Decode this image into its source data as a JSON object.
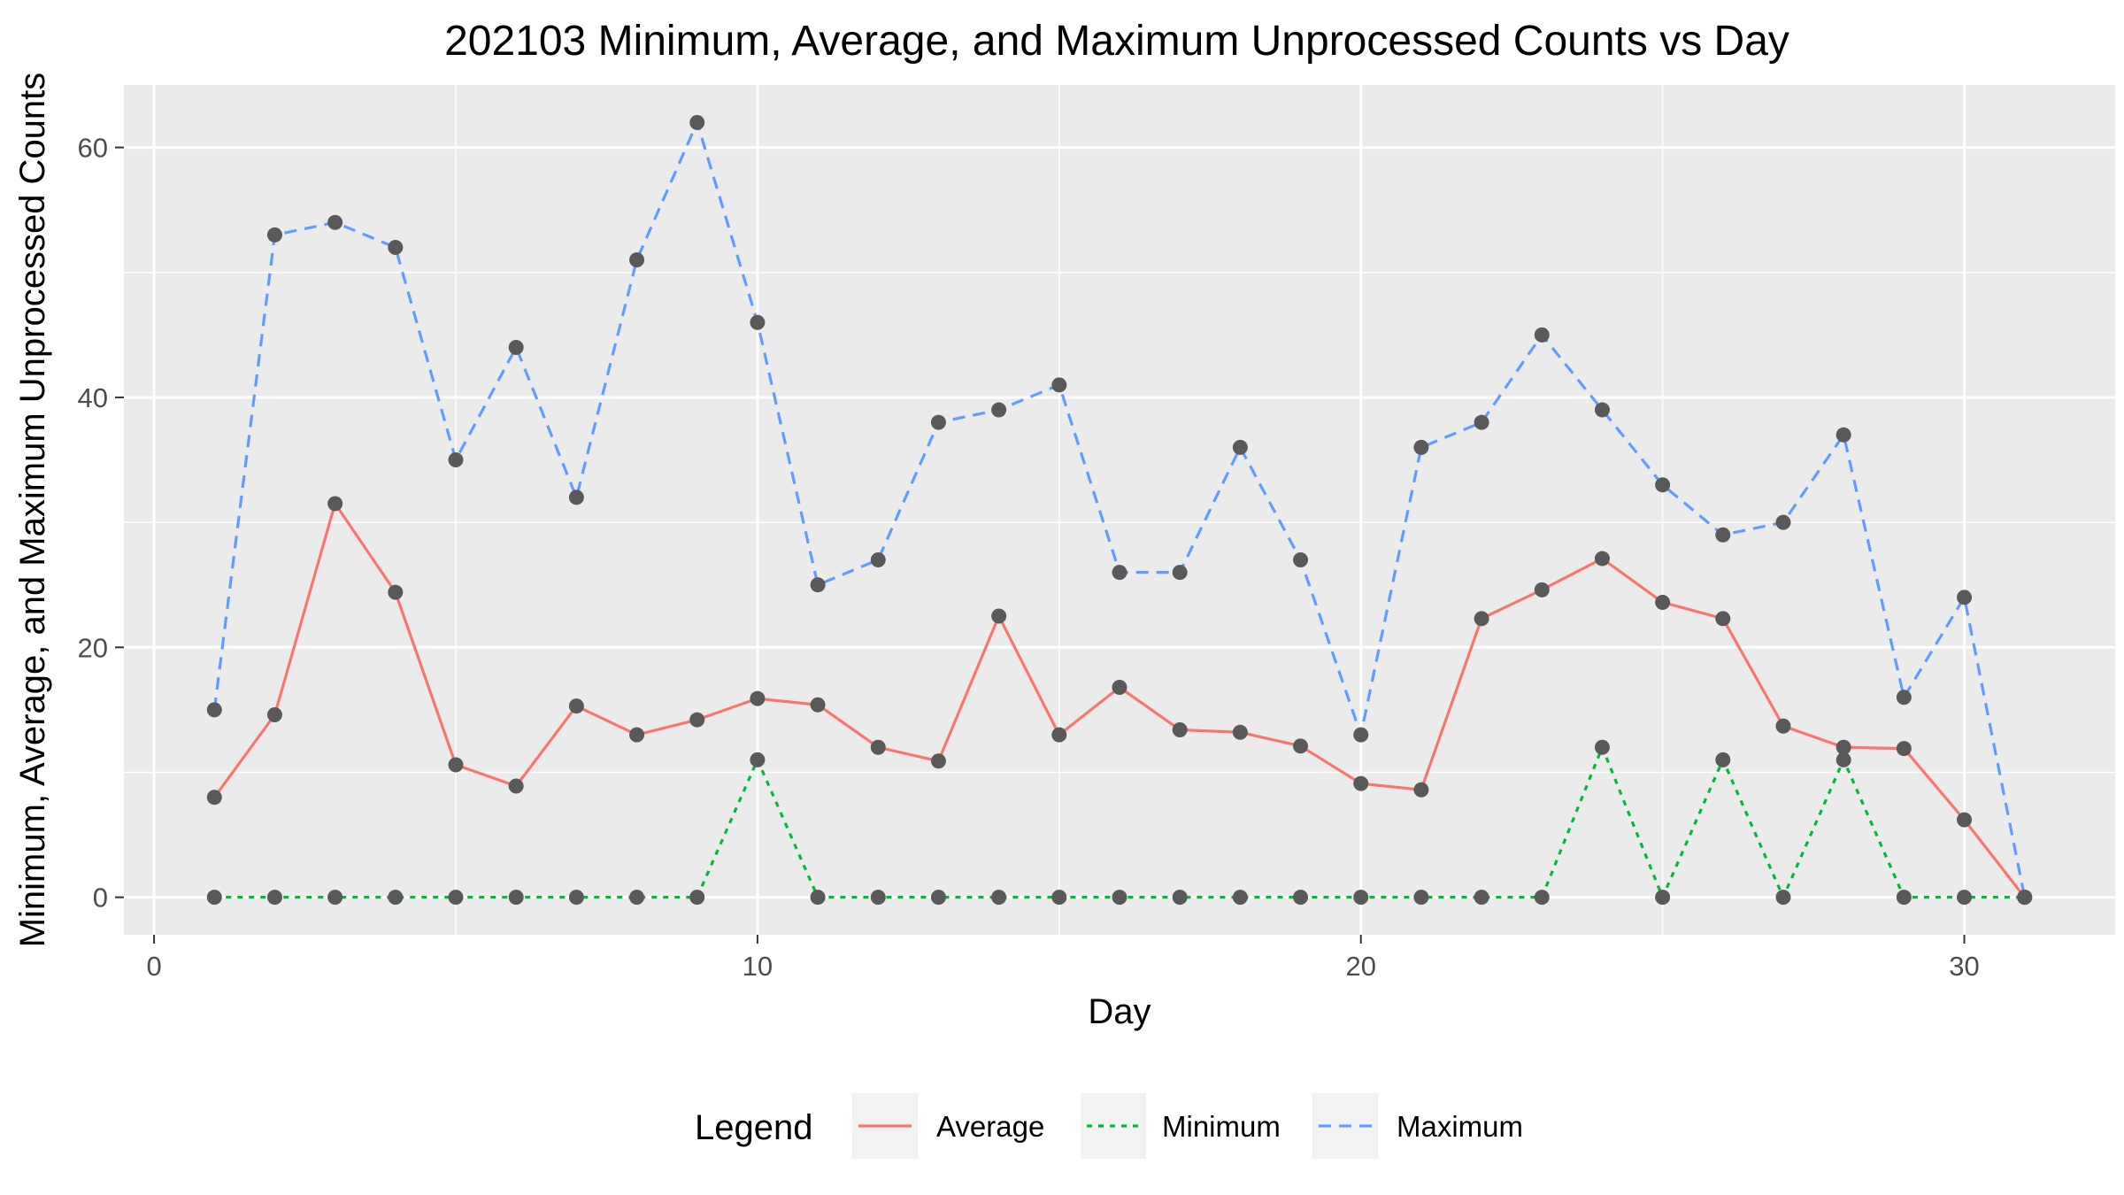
{
  "chart_data": {
    "type": "line",
    "title": "202103 Minimum, Average, and Maximum Unprocessed Counts vs Day",
    "xlabel": "Day",
    "ylabel": "Minimum, Average, and Maximum Unprocessed Counts",
    "xlim": [
      -0.5,
      32.5
    ],
    "ylim": [
      -3,
      65
    ],
    "x_ticks": [
      0,
      10,
      20,
      30
    ],
    "x_tick_labels": [
      "0",
      "10",
      "20",
      "30"
    ],
    "y_ticks": [
      0,
      20,
      40,
      60
    ],
    "y_tick_labels": [
      "0",
      "20",
      "40",
      "60"
    ],
    "grid": true,
    "legend_title": "Legend",
    "legend_position": "bottom",
    "x": [
      1,
      2,
      3,
      4,
      5,
      6,
      7,
      8,
      9,
      10,
      11,
      12,
      13,
      14,
      15,
      16,
      17,
      18,
      19,
      20,
      21,
      22,
      23,
      24,
      25,
      26,
      27,
      28,
      29,
      30,
      31
    ],
    "series": [
      {
        "name": "Average",
        "color": "#F8766D",
        "dash": "solid",
        "values": [
          8,
          14.6,
          31.5,
          24.4,
          10.6,
          8.9,
          15.3,
          13,
          14.2,
          15.9,
          15.4,
          12,
          10.9,
          22.5,
          13,
          16.8,
          13.4,
          13.2,
          12.1,
          9.1,
          8.6,
          22.3,
          24.6,
          27.1,
          23.6,
          22.3,
          13.7,
          12,
          11.9,
          6.2,
          0
        ]
      },
      {
        "name": "Minimum",
        "color": "#00BA38",
        "dash": "dotted",
        "values": [
          0,
          0,
          0,
          0,
          0,
          0,
          0,
          0,
          0,
          11,
          0,
          0,
          0,
          0,
          0,
          0,
          0,
          0,
          0,
          0,
          0,
          0,
          0,
          12,
          0,
          11,
          0,
          11,
          0,
          0,
          0
        ]
      },
      {
        "name": "Maximum",
        "color": "#619CFF",
        "dash": "dashed",
        "values": [
          15,
          53,
          54,
          52,
          35,
          44,
          32,
          51,
          62,
          46,
          25,
          27,
          38,
          39,
          41,
          26,
          26,
          36,
          27,
          13,
          36,
          38,
          45,
          39,
          33,
          29,
          30,
          37,
          16,
          24,
          0
        ]
      }
    ],
    "point_color": "#595959",
    "panel_background": "#EBEBEB",
    "grid_color": "#FFFFFF"
  }
}
